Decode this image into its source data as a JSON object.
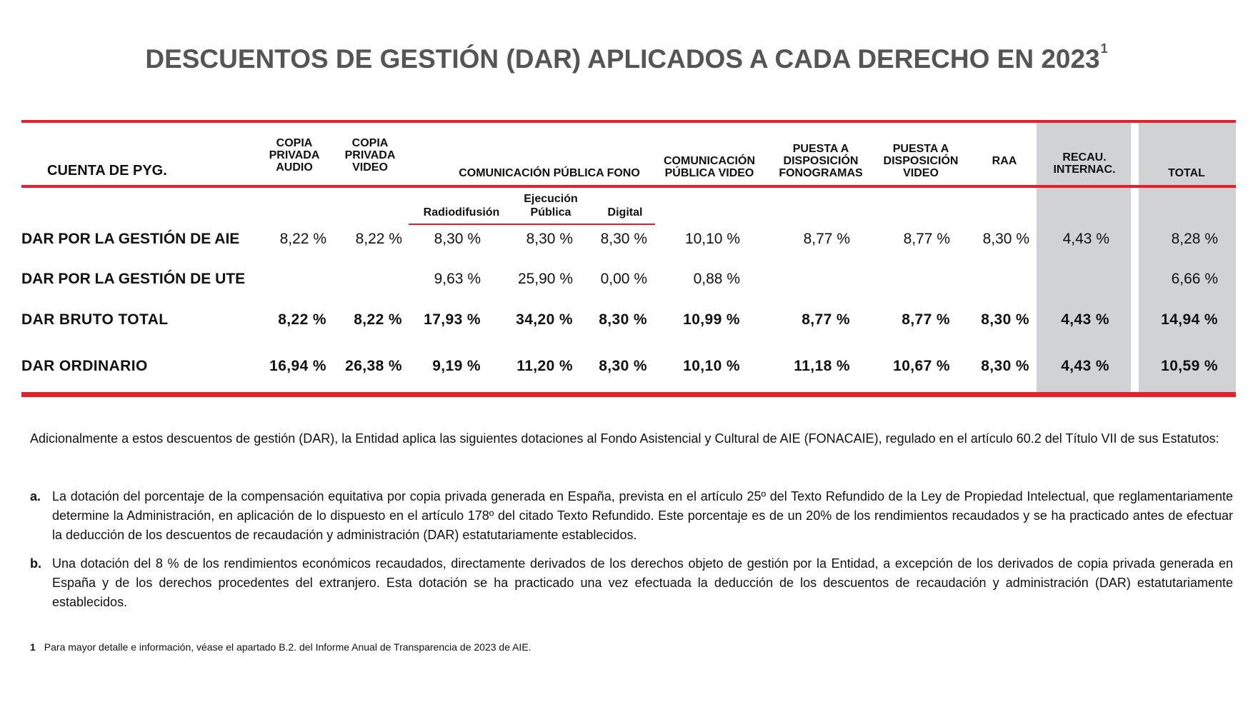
{
  "title": "DESCUENTOS DE GESTIÓN (DAR) APLICADOS A CADA DERECHO EN 2023",
  "title_sup": "1",
  "table": {
    "headers": {
      "cuenta": "CUENTA DE PYG.",
      "copia_audio": [
        "COPIA",
        "PRIVADA",
        "AUDIO"
      ],
      "copia_video": [
        "COPIA",
        "PRIVADA",
        "VIDEO"
      ],
      "com_publica_fono": "COMUNICACIÓN PÚBLICA FONO",
      "com_publica_video": [
        "COMUNICACIÓN",
        "PÚBLICA VIDEO"
      ],
      "puesta_fono": [
        "PUESTA A",
        "DISPOSICIÓN",
        "FONOGRAMAS"
      ],
      "puesta_video": [
        "PUESTA A",
        "DISPOSICIÓN",
        "VIDEO"
      ],
      "raa": "RAA",
      "recau": [
        "RECAU.",
        "INTERNAC."
      ],
      "total": "TOTAL"
    },
    "subheaders": {
      "radiodifusion": "Radiodifusión",
      "ejecucion": [
        "Ejecución",
        "Pública"
      ],
      "digital": "Digital"
    },
    "rows": [
      {
        "label": "DAR POR LA GESTIÓN DE AIE",
        "values": [
          "8,22 %",
          "8,22 %",
          "8,30 %",
          "8,30 %",
          "8,30 %",
          "10,10 %",
          "8,77 %",
          "8,77 %",
          "8,30 %",
          "4,43 %",
          "8,28 %"
        ]
      },
      {
        "label": "DAR POR LA GESTIÓN DE UTE",
        "values": [
          "",
          "",
          "9,63 %",
          "25,90 %",
          "0,00 %",
          "0,88 %",
          "",
          "",
          "",
          "",
          "6,66 %"
        ]
      },
      {
        "label": "DAR BRUTO TOTAL",
        "values": [
          "8,22 %",
          "8,22 %",
          "17,93 %",
          "34,20 %",
          "8,30 %",
          "10,99 %",
          "8,77 %",
          "8,77 %",
          "8,30 %",
          "4,43 %",
          "14,94 %"
        ]
      },
      {
        "label": "DAR ORDINARIO",
        "values": [
          "16,94 %",
          "26,38 %",
          "9,19 %",
          "11,20 %",
          "8,30 %",
          "10,10 %",
          "11,18 %",
          "10,67 %",
          "8,30 %",
          "4,43 %",
          "10,59 %"
        ]
      }
    ]
  },
  "intro": "Adicionalmente a estos descuentos de gestión (DAR), la Entidad aplica las siguientes dotaciones al Fondo Asistencial y Cultural de AIE (FONACAIE), regulado en el artículo 60.2 del Título VII de sus Estatutos:",
  "items": [
    {
      "letter": "a.",
      "text": "La dotación del porcentaje de la compensación equitativa por copia privada generada en España, prevista en el artículo 25º del Texto Refundido de la Ley de Propiedad Intelectual, que reglamentariamente determine la Administración, en aplicación de lo dispuesto en el artículo 178º del citado Texto Refundido. Este porcentaje es de un 20% de los rendimientos recaudados y se ha practicado antes de efectuar la deducción de los descuentos de recaudación y administración (DAR) estatutariamente establecidos."
    },
    {
      "letter": "b.",
      "text": "Una dotación del 8 % de los rendimientos económicos recaudados, directamente derivados de los derechos objeto de gestión por la Entidad, a excepción de los derivados de copia privada generada en España y de los derechos procedentes del extranjero. Esta dotación se ha practicado una vez efectuada la deducción de los descuentos de recaudación y administración (DAR) estatutariamente establecidos."
    }
  ],
  "footnote": {
    "number": "1",
    "text": "Para mayor detalle e información, véase el apartado B.2. del Informe Anual de Transparencia de 2023 de AIE."
  },
  "colors": {
    "accent_red": "#e3202b",
    "title_gray": "#555555",
    "column_gray": "#d1d2d4"
  }
}
